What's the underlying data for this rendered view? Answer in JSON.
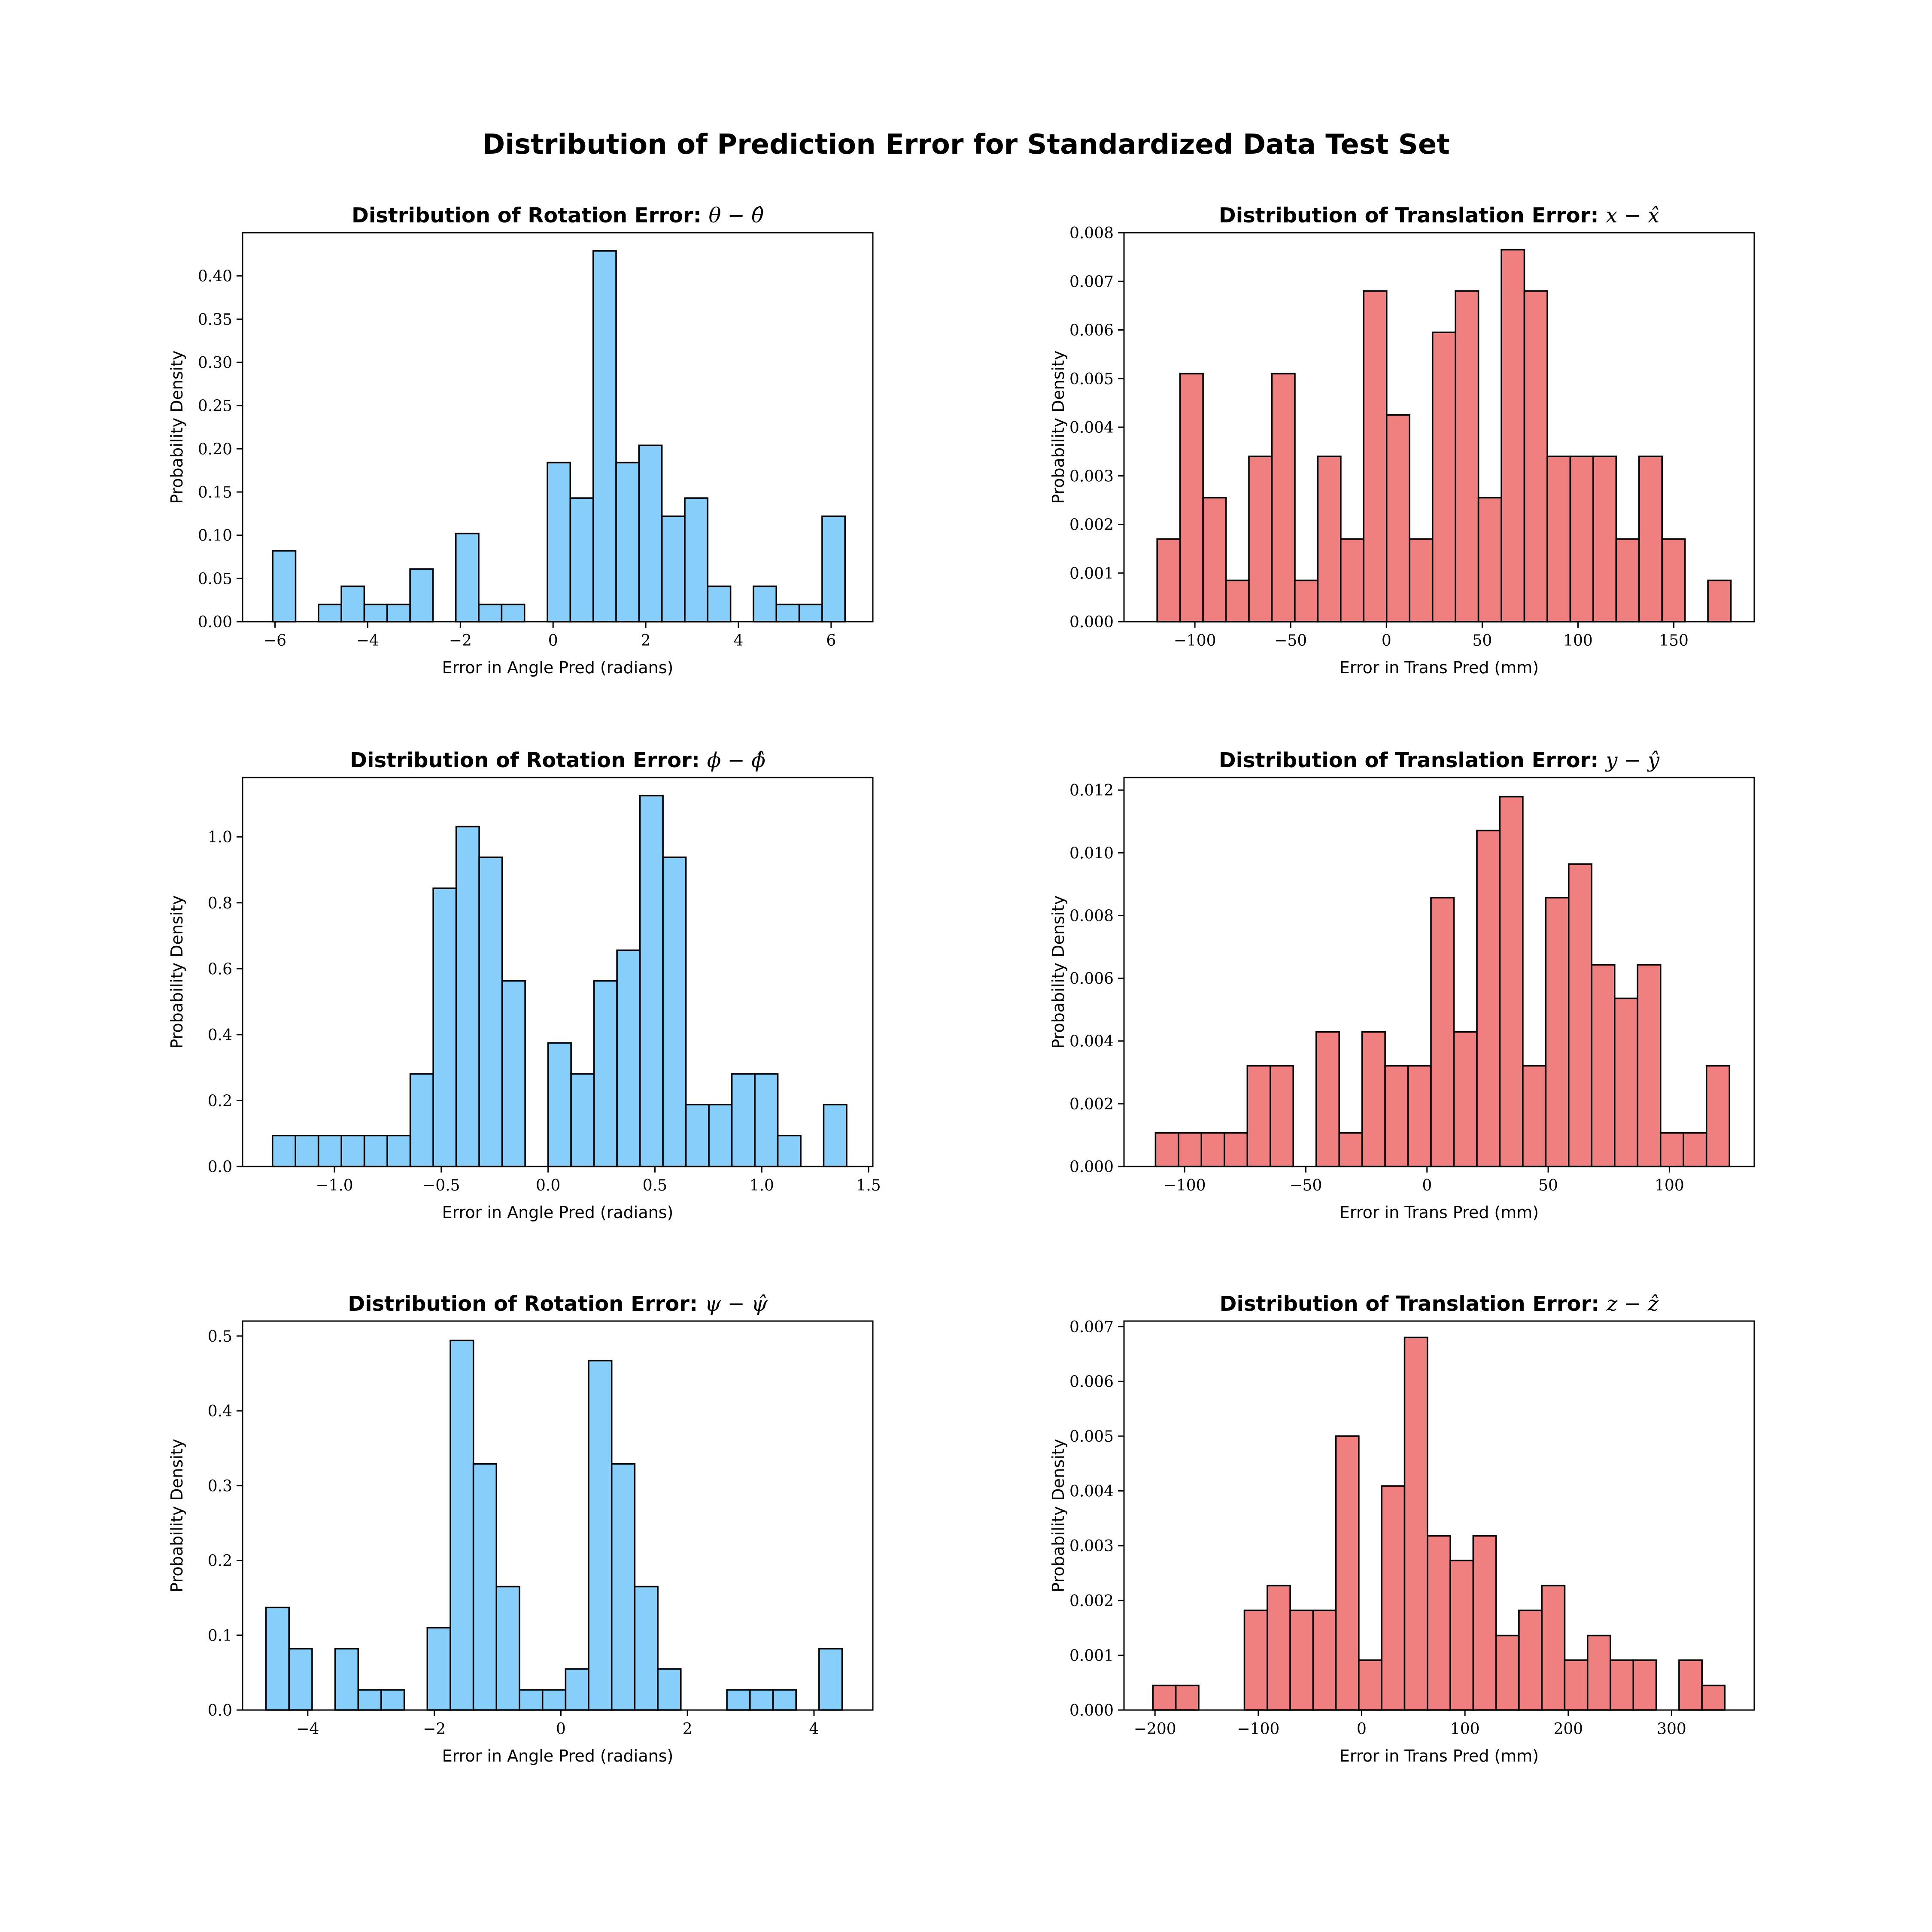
{
  "figure": {
    "title": "Distribution of Prediction Error for Standardized Data Test Set"
  },
  "chart_data": [
    {
      "type": "bar",
      "title_text": "Distribution of Rotation Error:",
      "title_math": "θ − θ̂",
      "xlabel": "Error in Angle Pred (radians)",
      "ylabel": "Probability Density",
      "xlim": [
        -6.7,
        6.9
      ],
      "ylim": [
        0,
        0.45
      ],
      "xticks": [
        -6,
        -4,
        -2,
        0,
        2,
        4,
        6
      ],
      "xtick_labels": [
        "−6",
        "−4",
        "−2",
        "0",
        "2",
        "4",
        "6"
      ],
      "yticks": [
        0,
        0.05,
        0.1,
        0.15,
        0.2,
        0.25,
        0.3,
        0.35,
        0.4
      ],
      "ytick_labels": [
        "0.00",
        "0.05",
        "0.10",
        "0.15",
        "0.20",
        "0.25",
        "0.30",
        "0.35",
        "0.40"
      ],
      "bin_start": -6.05,
      "bin_width": 0.494,
      "values": [
        0.082,
        0,
        0.02,
        0.041,
        0.02,
        0.02,
        0.061,
        0,
        0.102,
        0.02,
        0.02,
        0,
        0.184,
        0.143,
        0.429,
        0.184,
        0.204,
        0.122,
        0.143,
        0.041,
        0,
        0.041,
        0.02,
        0.02,
        0.122
      ],
      "color": "#87CEFA"
    },
    {
      "type": "bar",
      "title_text": "Distribution of Translation Error:",
      "title_math": "x − x̂",
      "xlabel": "Error in Trans Pred (mm)",
      "ylabel": "Probability Density",
      "xlim": [
        -137,
        192
      ],
      "ylim": [
        0,
        0.008
      ],
      "xticks": [
        -100,
        -50,
        0,
        50,
        100,
        150
      ],
      "xtick_labels": [
        "−100",
        "−50",
        "0",
        "50",
        "100",
        "150"
      ],
      "yticks": [
        0,
        0.001,
        0.002,
        0.003,
        0.004,
        0.005,
        0.006,
        0.007,
        0.008
      ],
      "ytick_labels": [
        "0.000",
        "0.001",
        "0.002",
        "0.003",
        "0.004",
        "0.005",
        "0.006",
        "0.007",
        "0.008"
      ],
      "bin_start": -119.7,
      "bin_width": 11.98,
      "values": [
        0.0017,
        0.0051,
        0.00255,
        0.00085,
        0.0034,
        0.0051,
        0.00085,
        0.0034,
        0.0017,
        0.0068,
        0.00425,
        0.0017,
        0.00595,
        0.0068,
        0.00255,
        0.00765,
        0.0068,
        0.0034,
        0.0034,
        0.0034,
        0.0017,
        0.0034,
        0.0017,
        0,
        0.00085
      ],
      "color": "#F08080"
    },
    {
      "type": "bar",
      "title_text": "Distribution of Rotation Error:",
      "title_math": "ϕ − ϕ̂",
      "xlabel": "Error in Angle Pred (radians)",
      "ylabel": "Probability Density",
      "xlim": [
        -1.43,
        1.52
      ],
      "ylim": [
        0,
        1.18
      ],
      "xticks": [
        -1,
        -0.5,
        0,
        0.5,
        1,
        1.5
      ],
      "xtick_labels": [
        "−1.0",
        "−0.5",
        "0.0",
        "0.5",
        "1.0",
        "1.5"
      ],
      "yticks": [
        0,
        0.2,
        0.4,
        0.6,
        0.8,
        1
      ],
      "ytick_labels": [
        "0.0",
        "0.2",
        "0.4",
        "0.6",
        "0.8",
        "1.0"
      ],
      "bin_start": -1.29,
      "bin_width": 0.1075,
      "values": [
        0.094,
        0.094,
        0.094,
        0.094,
        0.094,
        0.094,
        0.281,
        0.844,
        1.031,
        0.938,
        0.563,
        0,
        0.375,
        0.281,
        0.563,
        0.656,
        1.125,
        0.938,
        0.188,
        0.188,
        0.281,
        0.281,
        0.094,
        0,
        0.188
      ],
      "color": "#87CEFA"
    },
    {
      "type": "bar",
      "title_text": "Distribution of Translation Error:",
      "title_math": "y − ŷ",
      "xlabel": "Error in Trans Pred (mm)",
      "ylabel": "Probability Density",
      "xlim": [
        -125,
        135
      ],
      "ylim": [
        0,
        0.0124
      ],
      "xticks": [
        -100,
        -50,
        0,
        50,
        100
      ],
      "xtick_labels": [
        "−100",
        "−50",
        "0",
        "50",
        "100"
      ],
      "yticks": [
        0,
        0.002,
        0.004,
        0.006,
        0.008,
        0.01,
        0.012
      ],
      "ytick_labels": [
        "0.000",
        "0.002",
        "0.004",
        "0.006",
        "0.008",
        "0.010",
        "0.012"
      ],
      "bin_start": -112,
      "bin_width": 9.47,
      "values": [
        0.00107,
        0.00107,
        0.00107,
        0.00107,
        0.00321,
        0.00321,
        0,
        0.00429,
        0.00107,
        0.00429,
        0.00321,
        0.00321,
        0.00857,
        0.00429,
        0.01071,
        0.01179,
        0.00321,
        0.00857,
        0.00964,
        0.00643,
        0.00536,
        0.00643,
        0.00107,
        0.00107,
        0.00321
      ],
      "color": "#F08080"
    },
    {
      "type": "bar",
      "title_text": "Distribution of Rotation Error:",
      "title_math": "ψ − ψ̂",
      "xlabel": "Error in Angle Pred (radians)",
      "ylabel": "Probability Density",
      "xlim": [
        -5.03,
        4.93
      ],
      "ylim": [
        0,
        0.52
      ],
      "xticks": [
        -4,
        -2,
        0,
        2,
        4
      ],
      "xtick_labels": [
        "−4",
        "−2",
        "0",
        "2",
        "4"
      ],
      "yticks": [
        0,
        0.1,
        0.2,
        0.3,
        0.4,
        0.5
      ],
      "ytick_labels": [
        "0.0",
        "0.1",
        "0.2",
        "0.3",
        "0.4",
        "0.5"
      ],
      "bin_start": -4.66,
      "bin_width": 0.3642,
      "values": [
        0.137,
        0.082,
        0,
        0.082,
        0.027,
        0.027,
        0,
        0.11,
        0.494,
        0.329,
        0.165,
        0.027,
        0.027,
        0.055,
        0.467,
        0.329,
        0.165,
        0.055,
        0,
        0,
        0.027,
        0.027,
        0.027,
        0,
        0.082
      ],
      "color": "#87CEFA"
    },
    {
      "type": "bar",
      "title_text": "Distribution of Translation Error:",
      "title_math": "z − ẑ",
      "xlabel": "Error in Trans Pred (mm)",
      "ylabel": "Probability Density",
      "xlim": [
        -230,
        380
      ],
      "ylim": [
        0,
        0.0071
      ],
      "xticks": [
        -200,
        -100,
        0,
        100,
        200,
        300
      ],
      "xtick_labels": [
        "−200",
        "−100",
        "0",
        "100",
        "200",
        "300"
      ],
      "yticks": [
        0,
        0.001,
        0.002,
        0.003,
        0.004,
        0.005,
        0.006,
        0.007
      ],
      "ytick_labels": [
        "0.000",
        "0.001",
        "0.002",
        "0.003",
        "0.004",
        "0.005",
        "0.006",
        "0.007"
      ],
      "bin_start": -202,
      "bin_width": 22.14,
      "values": [
        0.00045,
        0.00045,
        0,
        0,
        0.00182,
        0.00227,
        0.00182,
        0.00182,
        0.005,
        0.00091,
        0.00409,
        0.0068,
        0.00318,
        0.00273,
        0.00318,
        0.00136,
        0.00182,
        0.00227,
        0.00091,
        0.00136,
        0.00091,
        0.00091,
        0,
        0.00091,
        0.00045
      ],
      "color": "#F08080"
    }
  ]
}
